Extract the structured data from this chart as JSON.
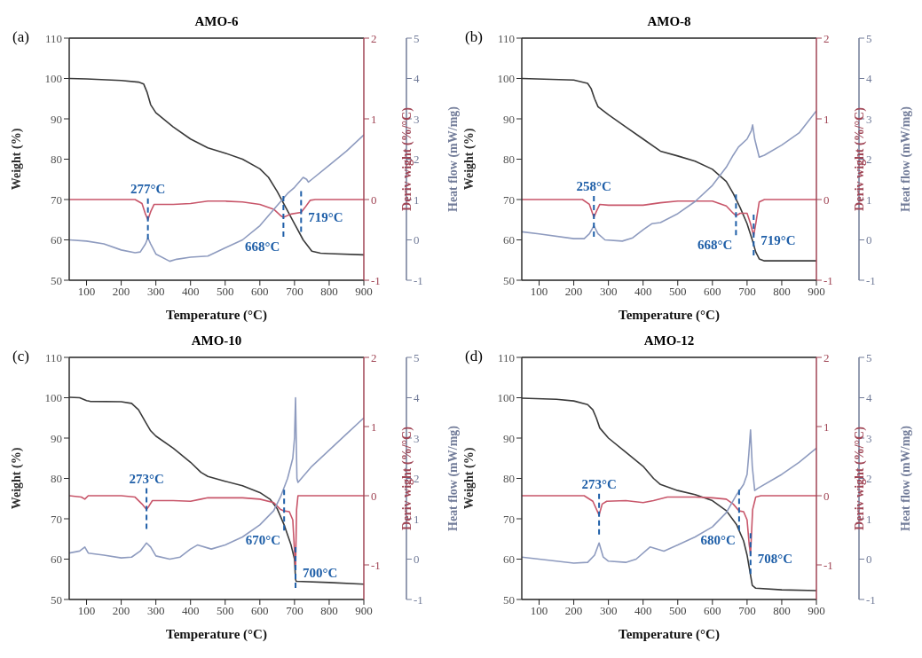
{
  "chart_data": [
    {
      "type": "line",
      "title": "AMO-6",
      "xlabel": "Temperature (°C)",
      "ylabel": "Weight (%)",
      "y2label": "Deriv wight (%/°C)",
      "y3label": "Heat flow (mW/mg)",
      "xlim": [
        50,
        900
      ],
      "xticks": [
        100,
        200,
        300,
        400,
        500,
        600,
        700,
        800,
        900
      ],
      "ylim": [
        50,
        110
      ],
      "yticks": [
        50,
        60,
        70,
        80,
        90,
        100,
        110
      ],
      "y2lim": [
        -1,
        2
      ],
      "y2ticks": [
        -1,
        0,
        1,
        2
      ],
      "y3lim": [
        -1,
        5
      ],
      "y3ticks": [
        -1,
        0,
        1,
        2,
        3,
        4,
        5
      ],
      "legend": false,
      "grid": false,
      "annotations": [
        "(a)"
      ],
      "ref_lines": [
        {
          "axis": "x",
          "value": 277,
          "label": "277°C",
          "color": "#1f5fa8",
          "line_style": "dashed"
        },
        {
          "axis": "x",
          "value": 668,
          "label": "668°C",
          "color": "#1f5fa8",
          "line_style": "dashed"
        },
        {
          "axis": "x",
          "value": 719,
          "label": "719°C",
          "color": "#1f5fa8",
          "line_style": "dashed"
        }
      ],
      "series": [
        {
          "color": "#3a3a3a",
          "x": [
            50,
            100,
            200,
            250,
            265,
            275,
            285,
            300,
            350,
            400,
            450,
            500,
            550,
            600,
            625,
            650,
            675,
            700,
            725,
            750,
            775,
            800,
            900
          ],
          "values": [
            100,
            99.9,
            99.5,
            99.1,
            98.6,
            96.5,
            93.5,
            91.5,
            88,
            85,
            82.8,
            81.5,
            80,
            77.6,
            75.5,
            72,
            68,
            64,
            60,
            57.2,
            56.7,
            56.6,
            56.3
          ]
        },
        {
          "color": "#c8566a",
          "axis": "y2",
          "x": [
            50,
            240,
            260,
            270,
            277,
            285,
            295,
            350,
            400,
            450,
            500,
            550,
            600,
            640,
            660,
            668,
            690,
            719,
            730,
            745,
            760,
            900
          ],
          "values": [
            0,
            0,
            -0.05,
            -0.18,
            -0.25,
            -0.15,
            -0.06,
            -0.06,
            -0.05,
            -0.02,
            -0.02,
            -0.03,
            -0.06,
            -0.12,
            -0.2,
            -0.22,
            -0.18,
            -0.16,
            -0.1,
            -0.01,
            0,
            0
          ]
        },
        {
          "color": "#8e9bbf",
          "axis": "y3",
          "x": [
            50,
            100,
            150,
            200,
            240,
            255,
            270,
            277,
            285,
            300,
            340,
            360,
            400,
            450,
            500,
            550,
            600,
            650,
            680,
            700,
            725,
            735,
            740,
            750,
            800,
            850,
            900
          ],
          "values": [
            0,
            -0.03,
            -0.1,
            -0.25,
            -0.32,
            -0.3,
            -0.1,
            0.05,
            -0.1,
            -0.35,
            -0.53,
            -0.48,
            -0.43,
            -0.4,
            -0.2,
            0,
            0.35,
            0.85,
            1.15,
            1.3,
            1.55,
            1.5,
            1.43,
            1.5,
            1.85,
            2.2,
            2.6
          ]
        }
      ]
    },
    {
      "type": "line",
      "title": "AMO-8",
      "xlabel": "Temperature (°C)",
      "ylabel": "Weight (%)",
      "y2label": "Deriv wight (%/°C)",
      "y3label": "Heat flow (mW/mg)",
      "xlim": [
        50,
        900
      ],
      "xticks": [
        100,
        200,
        300,
        400,
        500,
        600,
        700,
        800,
        900
      ],
      "ylim": [
        50,
        110
      ],
      "yticks": [
        50,
        60,
        70,
        80,
        90,
        100,
        110
      ],
      "y2lim": [
        -1,
        2
      ],
      "y2ticks": [
        -1,
        0,
        1,
        2
      ],
      "y3lim": [
        -1,
        5
      ],
      "y3ticks": [
        -1,
        0,
        1,
        2,
        3,
        4,
        5
      ],
      "legend": false,
      "grid": false,
      "annotations": [
        "(b)"
      ],
      "ref_lines": [
        {
          "axis": "x",
          "value": 258,
          "label": "258°C",
          "color": "#1f5fa8",
          "line_style": "dashed"
        },
        {
          "axis": "x",
          "value": 668,
          "label": "668°C",
          "color": "#1f5fa8",
          "line_style": "dashed"
        },
        {
          "axis": "x",
          "value": 719,
          "label": "719°C",
          "color": "#1f5fa8",
          "line_style": "dashed"
        }
      ],
      "series": [
        {
          "color": "#3a3a3a",
          "x": [
            50,
            200,
            240,
            250,
            260,
            270,
            300,
            350,
            400,
            450,
            500,
            550,
            600,
            640,
            660,
            680,
            700,
            715,
            725,
            735,
            750,
            900
          ],
          "values": [
            100,
            99.6,
            98.8,
            97.5,
            95,
            93,
            91,
            88,
            85,
            82,
            80.8,
            79.5,
            77.5,
            74.5,
            71.5,
            68,
            64,
            60,
            57,
            55.3,
            54.8,
            54.8
          ]
        },
        {
          "color": "#c8566a",
          "axis": "y2",
          "x": [
            50,
            225,
            245,
            258,
            265,
            275,
            300,
            400,
            450,
            500,
            600,
            640,
            660,
            668,
            680,
            700,
            710,
            719,
            725,
            735,
            750,
            900
          ],
          "values": [
            0,
            0,
            -0.06,
            -0.22,
            -0.15,
            -0.06,
            -0.07,
            -0.07,
            -0.04,
            -0.02,
            -0.02,
            -0.08,
            -0.17,
            -0.2,
            -0.17,
            -0.17,
            -0.3,
            -0.45,
            -0.3,
            -0.03,
            0,
            0
          ]
        },
        {
          "color": "#8e9bbf",
          "axis": "y3",
          "x": [
            50,
            100,
            200,
            230,
            245,
            258,
            270,
            290,
            340,
            370,
            400,
            425,
            450,
            500,
            550,
            600,
            640,
            660,
            675,
            700,
            712,
            716,
            722,
            735,
            750,
            800,
            850,
            900
          ],
          "values": [
            0.2,
            0.15,
            0.03,
            0.03,
            0.15,
            0.35,
            0.15,
            0,
            -0.03,
            0.05,
            0.25,
            0.4,
            0.43,
            0.65,
            0.95,
            1.35,
            1.8,
            2.1,
            2.3,
            2.5,
            2.7,
            2.85,
            2.5,
            2.05,
            2.1,
            2.35,
            2.65,
            3.2
          ]
        }
      ]
    },
    {
      "type": "line",
      "title": "AMO-10",
      "xlabel": "Temperature (°C)",
      "ylabel": "Weight (%)",
      "y2label": "Deriv wight (%/°C)",
      "y3label": "Heat flow (mW/mg)",
      "xlim": [
        50,
        900
      ],
      "xticks": [
        100,
        200,
        300,
        400,
        500,
        600,
        700,
        800,
        900
      ],
      "ylim": [
        50,
        110
      ],
      "yticks": [
        50,
        60,
        70,
        80,
        90,
        100,
        110
      ],
      "y2lim": [
        -1.5,
        2
      ],
      "y2ticks": [
        -1,
        0,
        1,
        2
      ],
      "y3lim": [
        -1,
        5
      ],
      "y3ticks": [
        -1,
        0,
        1,
        2,
        3,
        4,
        5
      ],
      "legend": false,
      "grid": false,
      "annotations": [
        "(c)"
      ],
      "ref_lines": [
        {
          "axis": "x",
          "value": 273,
          "label": "273°C",
          "color": "#1f5fa8",
          "line_style": "dashed"
        },
        {
          "axis": "x",
          "value": 670,
          "label": "670°C",
          "color": "#1f5fa8",
          "line_style": "dashed"
        },
        {
          "axis": "x",
          "value": 703,
          "label": "700°C",
          "color": "#1f5fa8",
          "line_style": "dashed"
        }
      ],
      "series": [
        {
          "color": "#3a3a3a",
          "x": [
            50,
            80,
            100,
            110,
            200,
            230,
            250,
            270,
            285,
            300,
            350,
            400,
            430,
            450,
            500,
            550,
            600,
            630,
            650,
            670,
            690,
            700,
            703,
            705,
            800,
            900
          ],
          "values": [
            100.1,
            100,
            99.3,
            99.1,
            99,
            98.6,
            97,
            94,
            91.8,
            90.5,
            87.5,
            84,
            81.5,
            80.5,
            79.3,
            78.2,
            76.5,
            74.8,
            72.5,
            68.5,
            63.5,
            60,
            55,
            54.5,
            54.2,
            53.8
          ]
        },
        {
          "color": "#c8566a",
          "axis": "y2",
          "x": [
            50,
            85,
            95,
            105,
            200,
            240,
            260,
            273,
            280,
            290,
            350,
            400,
            430,
            450,
            550,
            600,
            640,
            660,
            670,
            685,
            695,
            700,
            703,
            706,
            710,
            900
          ],
          "values": [
            0,
            -0.02,
            -0.05,
            0,
            0,
            -0.02,
            -0.12,
            -0.2,
            -0.15,
            -0.07,
            -0.07,
            -0.08,
            -0.05,
            -0.03,
            -0.03,
            -0.05,
            -0.1,
            -0.2,
            -0.22,
            -0.23,
            -0.35,
            -0.8,
            -1.05,
            -0.2,
            0,
            0
          ]
        },
        {
          "color": "#8e9bbf",
          "axis": "y3",
          "x": [
            50,
            80,
            95,
            105,
            150,
            200,
            230,
            255,
            273,
            285,
            300,
            340,
            370,
            400,
            420,
            460,
            500,
            550,
            600,
            640,
            660,
            680,
            695,
            700,
            703,
            707,
            710,
            750,
            800,
            850,
            900
          ],
          "values": [
            0.15,
            0.2,
            0.3,
            0.15,
            0.1,
            0.03,
            0.05,
            0.2,
            0.4,
            0.3,
            0.08,
            0,
            0.05,
            0.25,
            0.35,
            0.25,
            0.35,
            0.55,
            0.85,
            1.2,
            1.55,
            2,
            2.5,
            3,
            4,
            2,
            1.9,
            2.3,
            2.7,
            3.1,
            3.5
          ]
        }
      ]
    },
    {
      "type": "line",
      "title": "AMO-12",
      "xlabel": "Temperature (°C)",
      "ylabel": "Weight (%)",
      "y2label": "Deriv wight (%/°C)",
      "y3label": "Heat flow (mW/mg)",
      "xlim": [
        50,
        900
      ],
      "xticks": [
        100,
        200,
        300,
        400,
        500,
        600,
        700,
        800,
        900
      ],
      "ylim": [
        50,
        110
      ],
      "yticks": [
        50,
        60,
        70,
        80,
        90,
        100,
        110
      ],
      "y2lim": [
        -1.5,
        2
      ],
      "y2ticks": [
        -1,
        0,
        1,
        2
      ],
      "y3lim": [
        -1,
        5
      ],
      "y3ticks": [
        -1,
        0,
        1,
        2,
        3,
        4,
        5
      ],
      "legend": false,
      "grid": false,
      "annotations": [
        "(d)"
      ],
      "ref_lines": [
        {
          "axis": "x",
          "value": 273,
          "label": "273°C",
          "color": "#1f5fa8",
          "line_style": "dashed"
        },
        {
          "axis": "x",
          "value": 677,
          "label": "680°C",
          "color": "#1f5fa8",
          "line_style": "dashed"
        },
        {
          "axis": "x",
          "value": 710,
          "label": "708°C",
          "color": "#1f5fa8",
          "line_style": "dashed"
        }
      ],
      "series": [
        {
          "color": "#3a3a3a",
          "x": [
            50,
            150,
            200,
            240,
            255,
            265,
            275,
            300,
            350,
            400,
            430,
            450,
            500,
            550,
            600,
            640,
            670,
            690,
            700,
            708,
            715,
            725,
            800,
            900
          ],
          "values": [
            99.9,
            99.6,
            99.2,
            98.3,
            97,
            95,
            92.5,
            90,
            86.5,
            83,
            80,
            78.5,
            77,
            76,
            74.5,
            72,
            68.5,
            64.5,
            61,
            57,
            53.5,
            52.8,
            52.4,
            52.2
          ]
        },
        {
          "color": "#c8566a",
          "axis": "y2",
          "x": [
            50,
            230,
            255,
            273,
            282,
            295,
            350,
            400,
            430,
            470,
            550,
            600,
            640,
            660,
            677,
            690,
            700,
            706,
            710,
            716,
            725,
            740,
            900
          ],
          "values": [
            0,
            0,
            -0.08,
            -0.28,
            -0.12,
            -0.08,
            -0.07,
            -0.1,
            -0.07,
            -0.02,
            -0.02,
            -0.03,
            -0.05,
            -0.12,
            -0.22,
            -0.23,
            -0.35,
            -0.7,
            -0.85,
            -0.2,
            -0.02,
            0,
            0
          ]
        },
        {
          "color": "#8e9bbf",
          "axis": "y3",
          "x": [
            50,
            150,
            200,
            240,
            260,
            273,
            285,
            300,
            350,
            380,
            420,
            460,
            500,
            550,
            600,
            640,
            670,
            690,
            700,
            705,
            710,
            715,
            722,
            730,
            800,
            850,
            900
          ],
          "values": [
            0.05,
            -0.05,
            -0.1,
            -0.08,
            0.1,
            0.4,
            0.05,
            -0.05,
            -0.08,
            0,
            0.3,
            0.2,
            0.35,
            0.55,
            0.8,
            1.15,
            1.6,
            1.85,
            2.1,
            2.6,
            3.2,
            2.3,
            1.7,
            1.75,
            2.1,
            2.4,
            2.75
          ]
        }
      ]
    }
  ]
}
